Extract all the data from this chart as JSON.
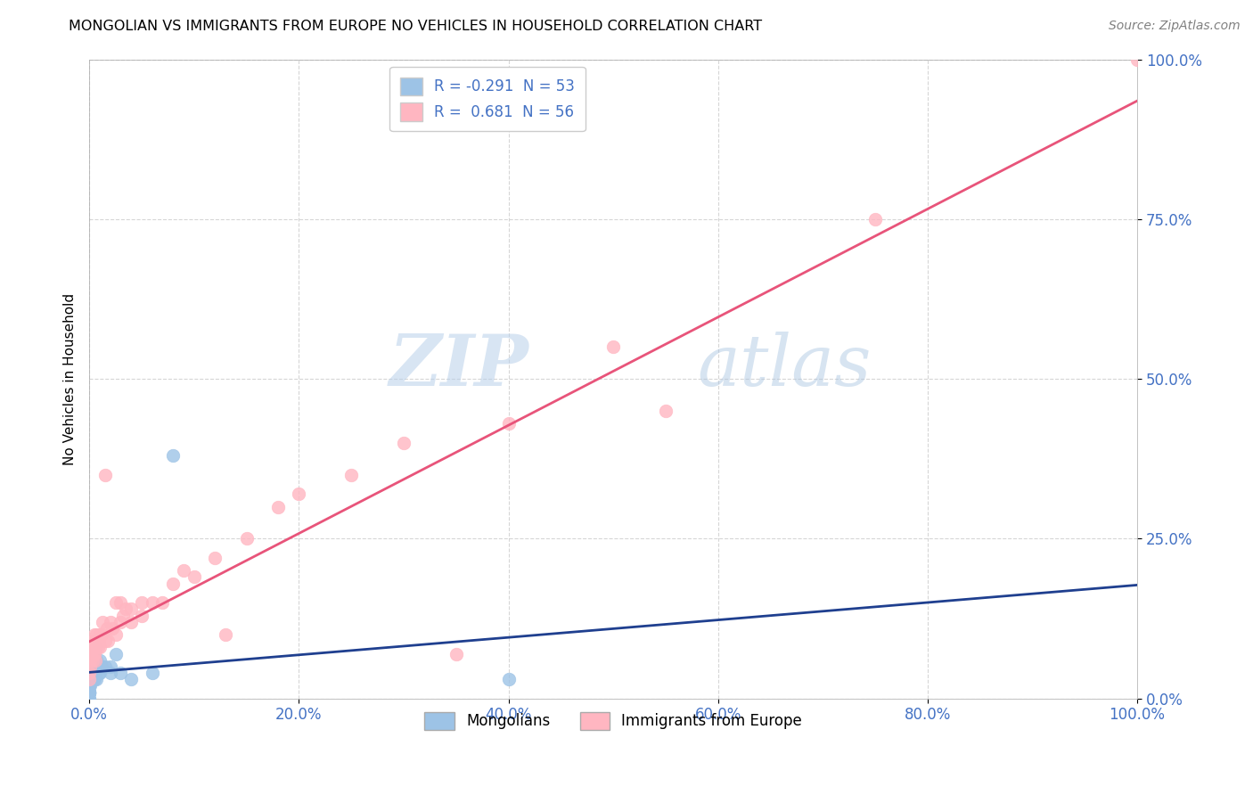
{
  "title": "MONGOLIAN VS IMMIGRANTS FROM EUROPE NO VEHICLES IN HOUSEHOLD CORRELATION CHART",
  "source": "Source: ZipAtlas.com",
  "tick_color": "#4472C4",
  "ylabel": "No Vehicles in Household",
  "r_mongolian": -0.291,
  "n_mongolian": 53,
  "r_europe": 0.681,
  "n_europe": 56,
  "mongolian_color": "#9DC3E6",
  "europe_color": "#FFB6C1",
  "mongolian_line_color": "#1F3F8F",
  "europe_line_color": "#E8547A",
  "background_color": "#FFFFFF",
  "xlim": [
    0.0,
    1.0
  ],
  "ylim": [
    0.0,
    1.0
  ],
  "x_ticks": [
    0.0,
    0.2,
    0.4,
    0.6,
    0.8,
    1.0
  ],
  "x_tick_labels": [
    "0.0%",
    "20.0%",
    "40.0%",
    "60.0%",
    "80.0%",
    "100.0%"
  ],
  "y_ticks": [
    0.0,
    0.25,
    0.5,
    0.75,
    1.0
  ],
  "y_tick_labels": [
    "0.0%",
    "25.0%",
    "50.0%",
    "75.0%",
    "100.0%"
  ],
  "mongolian_x": [
    0.0,
    0.0,
    0.0,
    0.0,
    0.0,
    0.0,
    0.0,
    0.0,
    0.0,
    0.0,
    0.0,
    0.0,
    0.0,
    0.0,
    0.0,
    0.0,
    0.0,
    0.0,
    0.0,
    0.0,
    0.001,
    0.001,
    0.001,
    0.001,
    0.001,
    0.002,
    0.002,
    0.002,
    0.003,
    0.003,
    0.003,
    0.004,
    0.004,
    0.005,
    0.005,
    0.006,
    0.006,
    0.007,
    0.007,
    0.008,
    0.009,
    0.01,
    0.01,
    0.012,
    0.015,
    0.02,
    0.02,
    0.025,
    0.03,
    0.04,
    0.06,
    0.08,
    0.4
  ],
  "mongolian_y": [
    0.08,
    0.06,
    0.05,
    0.04,
    0.04,
    0.03,
    0.03,
    0.03,
    0.02,
    0.02,
    0.02,
    0.02,
    0.01,
    0.01,
    0.01,
    0.01,
    0.01,
    0.01,
    0.0,
    0.0,
    0.05,
    0.04,
    0.03,
    0.03,
    0.02,
    0.06,
    0.05,
    0.03,
    0.05,
    0.04,
    0.03,
    0.06,
    0.03,
    0.05,
    0.03,
    0.08,
    0.04,
    0.06,
    0.03,
    0.05,
    0.04,
    0.06,
    0.04,
    0.05,
    0.05,
    0.05,
    0.04,
    0.07,
    0.04,
    0.03,
    0.04,
    0.38,
    0.03
  ],
  "europe_x": [
    0.0,
    0.0,
    0.001,
    0.001,
    0.001,
    0.002,
    0.002,
    0.003,
    0.003,
    0.004,
    0.004,
    0.005,
    0.005,
    0.006,
    0.006,
    0.007,
    0.008,
    0.009,
    0.01,
    0.01,
    0.012,
    0.013,
    0.015,
    0.015,
    0.017,
    0.018,
    0.02,
    0.022,
    0.025,
    0.025,
    0.03,
    0.03,
    0.032,
    0.035,
    0.04,
    0.04,
    0.05,
    0.05,
    0.06,
    0.07,
    0.08,
    0.09,
    0.1,
    0.12,
    0.13,
    0.15,
    0.18,
    0.2,
    0.25,
    0.3,
    0.35,
    0.4,
    0.5,
    0.55,
    0.75,
    1.0
  ],
  "europe_y": [
    0.04,
    0.03,
    0.07,
    0.06,
    0.05,
    0.08,
    0.07,
    0.08,
    0.06,
    0.09,
    0.07,
    0.1,
    0.07,
    0.06,
    0.08,
    0.1,
    0.08,
    0.09,
    0.1,
    0.08,
    0.1,
    0.12,
    0.35,
    0.09,
    0.11,
    0.09,
    0.12,
    0.11,
    0.1,
    0.15,
    0.12,
    0.15,
    0.13,
    0.14,
    0.14,
    0.12,
    0.15,
    0.13,
    0.15,
    0.15,
    0.18,
    0.2,
    0.19,
    0.22,
    0.1,
    0.25,
    0.3,
    0.32,
    0.35,
    0.4,
    0.07,
    0.43,
    0.55,
    0.45,
    0.75,
    1.0
  ]
}
